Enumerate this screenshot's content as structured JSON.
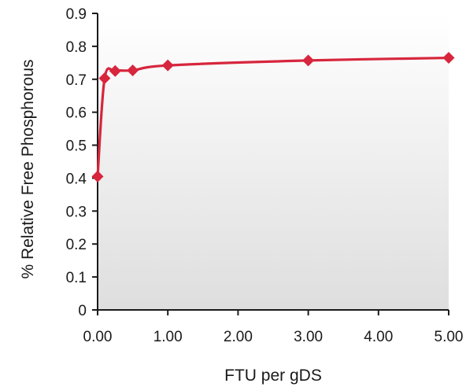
{
  "chart_data": {
    "type": "line",
    "title": "",
    "xlabel": "FTU per gDS",
    "ylabel": "% Relative Free Phosphorous",
    "xlim": [
      0,
      5
    ],
    "ylim": [
      0,
      0.9
    ],
    "x_ticks": [
      {
        "value": 0,
        "label": "0.00"
      },
      {
        "value": 1,
        "label": "1.00"
      },
      {
        "value": 2,
        "label": "2.00"
      },
      {
        "value": 3,
        "label": "3.00"
      },
      {
        "value": 4,
        "label": "4.00"
      },
      {
        "value": 5,
        "label": "5.00"
      }
    ],
    "y_ticks": [
      {
        "value": 0,
        "label": "0"
      },
      {
        "value": 0.1,
        "label": "0.1"
      },
      {
        "value": 0.2,
        "label": "0.2"
      },
      {
        "value": 0.3,
        "label": "0.3"
      },
      {
        "value": 0.4,
        "label": "0.4"
      },
      {
        "value": 0.5,
        "label": "0.5"
      },
      {
        "value": 0.6,
        "label": "0.6"
      },
      {
        "value": 0.7,
        "label": "0.7"
      },
      {
        "value": 0.8,
        "label": "0.8"
      },
      {
        "value": 0.9,
        "label": "0.9"
      }
    ],
    "grid": false,
    "marker": "diamond",
    "smooth": true,
    "background": "gradient",
    "series": [
      {
        "color": "#d7263d",
        "points": [
          {
            "x": 0.0,
            "y": 0.405
          },
          {
            "x": 0.1,
            "y": 0.703
          },
          {
            "x": 0.25,
            "y": 0.725
          },
          {
            "x": 0.5,
            "y": 0.727
          },
          {
            "x": 1.0,
            "y": 0.742
          },
          {
            "x": 3.0,
            "y": 0.757
          },
          {
            "x": 5.0,
            "y": 0.765
          }
        ]
      }
    ]
  },
  "colors": {
    "series": "#d7263d",
    "axis": "#1a1a1a",
    "plot_bg_top": "#ffffff",
    "plot_bg_bottom": "#dedede"
  }
}
